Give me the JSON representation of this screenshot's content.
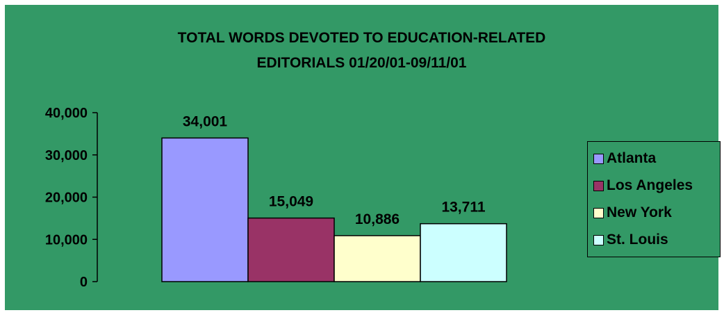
{
  "chart_data": {
    "type": "bar",
    "title_lines": [
      "TOTAL WORDS DEVOTED TO EDUCATION-RELATED",
      "EDITORIALS 01/20/01-09/11/01"
    ],
    "categories": [
      "Atlanta",
      "Los Angeles",
      "New York",
      "St. Louis"
    ],
    "values": [
      34001,
      15049,
      10886,
      13711
    ],
    "value_labels": [
      "34,001",
      "15,049",
      "10,886",
      "13,711"
    ],
    "colors": [
      "#9999FF",
      "#993366",
      "#FFFFCC",
      "#CCFFFF"
    ],
    "yticks": [
      0,
      10000,
      20000,
      30000,
      40000
    ],
    "ytick_labels": [
      "0",
      "10,000",
      "20,000",
      "30,000",
      "40,000"
    ],
    "ylim": [
      0,
      40000
    ],
    "xlabel": "",
    "ylabel": "",
    "legend_position": "right",
    "grid": false,
    "background": "#339966"
  }
}
